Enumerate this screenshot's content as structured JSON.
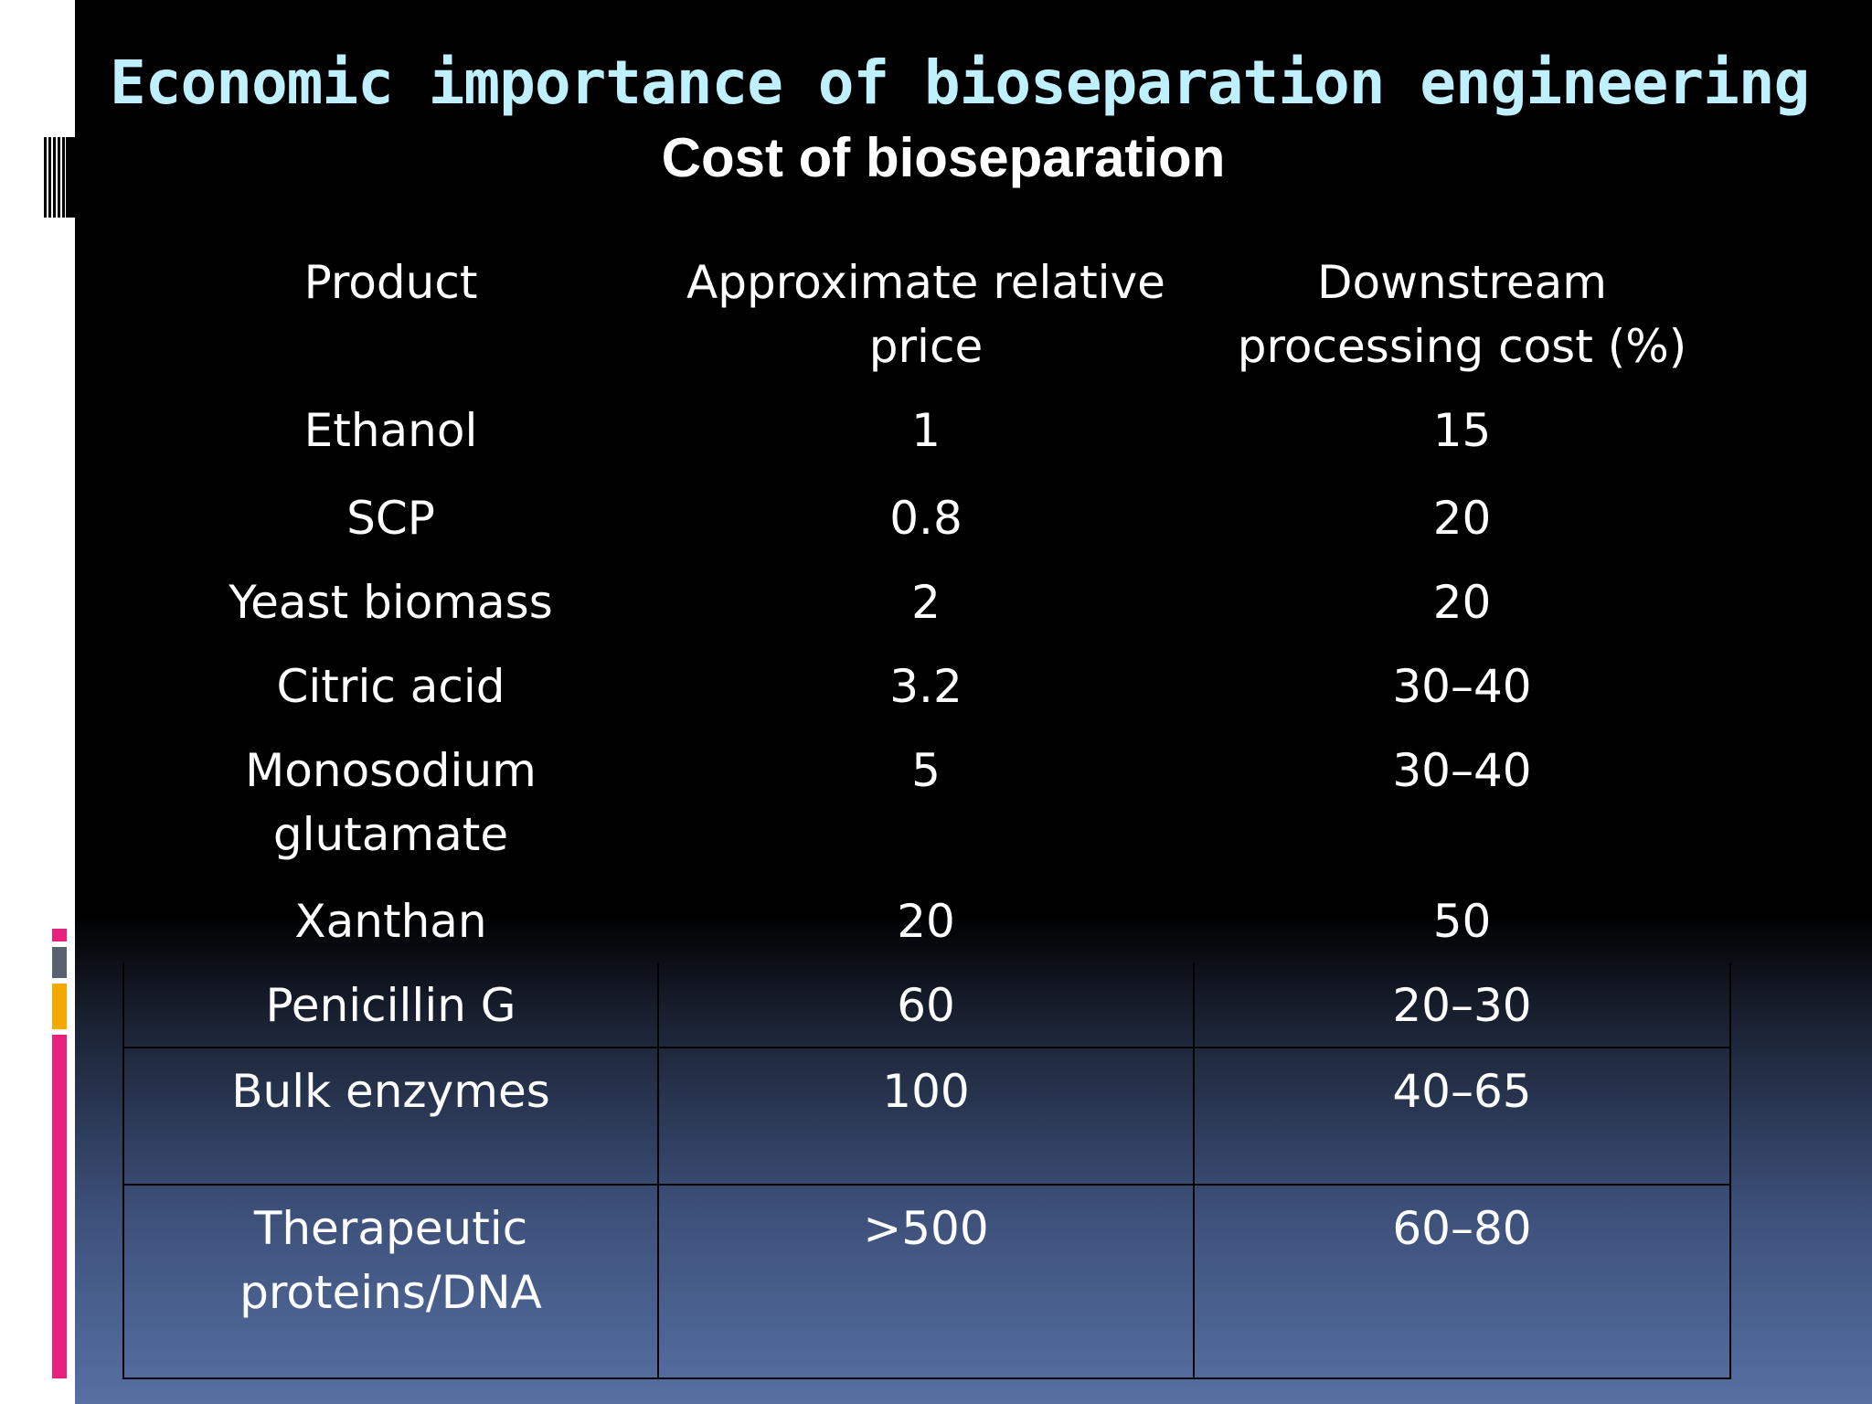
{
  "slide": {
    "title": "Economic importance of bioseparation engineering",
    "subtitle": "Cost of bioseparation"
  },
  "table": {
    "headers": [
      "Product",
      "Approximate relative price",
      "Downstream processing cost (%)"
    ],
    "rows": [
      {
        "product": "Ethanol",
        "price": "1",
        "cost": "15"
      },
      {
        "product": "SCP",
        "price": "0.8",
        "cost": "20"
      },
      {
        "product": "Yeast biomass",
        "price": "2",
        "cost": "20"
      },
      {
        "product": "Citric acid",
        "price": "3.2",
        "cost": "30–40"
      },
      {
        "product": "Monosodium glutamate",
        "price": "5",
        "cost": "30–40"
      },
      {
        "product": "Xanthan",
        "price": "20",
        "cost": "50"
      },
      {
        "product": "Penicillin G",
        "price": "60",
        "cost": "20–30"
      },
      {
        "product": "Bulk enzymes",
        "price": "100",
        "cost": "40–65"
      },
      {
        "product": "Therapeutic proteins/DNA",
        "price": ">500",
        "cost": "60–80"
      }
    ]
  },
  "colors": {
    "title": "#bff0ff",
    "text": "#ffffff",
    "accent_pink": "#e8217d",
    "accent_amber": "#f5a800",
    "accent_gray": "#5a6070"
  }
}
